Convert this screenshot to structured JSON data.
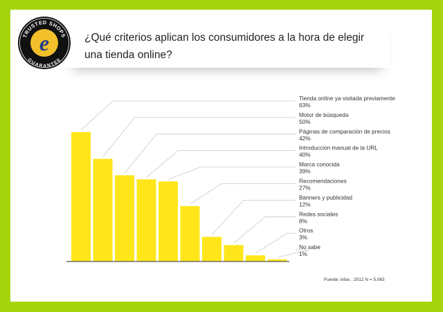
{
  "page": {
    "title_line1": "¿Qué criterios aplican los consumidores a la hora de elegir",
    "title_line2": "una tienda online?",
    "source": "Fuente: infas , 2012  N = 5.083"
  },
  "logo": {
    "text_top": "TRUSTED SHOPS",
    "text_bottom": "GUARANTEE",
    "letter": "e"
  },
  "colors": {
    "background": "#a6d40c",
    "bar": "#ffe61a",
    "logo_gold": "#f3c02b",
    "logo_blue": "#1e3f8c"
  },
  "chart_data": {
    "type": "bar",
    "categories": [
      "Tienda online ya visitada previamente",
      "Motor de búsqueda",
      "Páginas de comparación de precios",
      "Introducción manual de la URL",
      "Marca conocida",
      "Recomendaciones",
      "Banners y publicidad",
      "Redes sociales",
      "Otros",
      "No sabe"
    ],
    "values": [
      63,
      50,
      42,
      40,
      39,
      27,
      12,
      8,
      3,
      1
    ],
    "value_labels": [
      "63%",
      "50%",
      "42%",
      "40%",
      "39%",
      "27%",
      "12%",
      "8%",
      "3%",
      "1%"
    ],
    "ylim": [
      0,
      63
    ],
    "grid": false,
    "legend": "none"
  }
}
